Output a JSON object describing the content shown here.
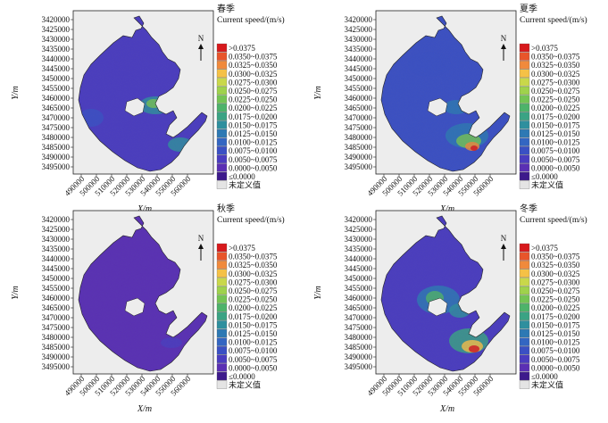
{
  "axes": {
    "x_label": "X/m",
    "y_label": "Y/m",
    "x_ticks": [
      "490000",
      "500000",
      "510000",
      "520000",
      "530000",
      "540000",
      "550000",
      "560000"
    ],
    "y_ticks": [
      "3495000",
      "3490000",
      "3485000",
      "3480000",
      "3475000",
      "3470000",
      "3465000",
      "3460000",
      "3455000",
      "3450000",
      "3445000",
      "3440000",
      "3435000",
      "3430000",
      "3425000",
      "3420000"
    ]
  },
  "north_label": "N",
  "legend": {
    "title": "Current speed/(m/s)",
    "items": [
      {
        "label": ">0.0375",
        "color": "#d7191c"
      },
      {
        "label": "0.0350~0.0375",
        "color": "#e8552b"
      },
      {
        "label": "0.0325~0.0350",
        "color": "#f08a3c"
      },
      {
        "label": "0.0300~0.0325",
        "color": "#f5c146"
      },
      {
        "label": "0.0275~0.0300",
        "color": "#c9d84a"
      },
      {
        "label": "0.0250~0.0275",
        "color": "#9fd24c"
      },
      {
        "label": "0.0225~0.0250",
        "color": "#74c454"
      },
      {
        "label": "0.0200~0.0225",
        "color": "#4db36a"
      },
      {
        "label": "0.0175~0.0200",
        "color": "#3aa384"
      },
      {
        "label": "0.0150~0.0175",
        "color": "#2f8f9e"
      },
      {
        "label": "0.0125~0.0150",
        "color": "#2d79b4"
      },
      {
        "label": "0.0100~0.0125",
        "color": "#3366c2"
      },
      {
        "label": "0.0075~0.0100",
        "color": "#3a50c4"
      },
      {
        "label": "0.0050~0.0075",
        "color": "#4a3cc0"
      },
      {
        "label": "0.0000~0.0050",
        "color": "#5a2fb4"
      },
      {
        "label": "≤0.0000",
        "color": "#3d1a8c"
      },
      {
        "label": "未定义值",
        "color": "#e4e4e4"
      }
    ]
  },
  "panels": [
    {
      "season": "春季"
    },
    {
      "season": "夏季"
    },
    {
      "season": "秋季"
    },
    {
      "season": "冬季"
    }
  ]
}
